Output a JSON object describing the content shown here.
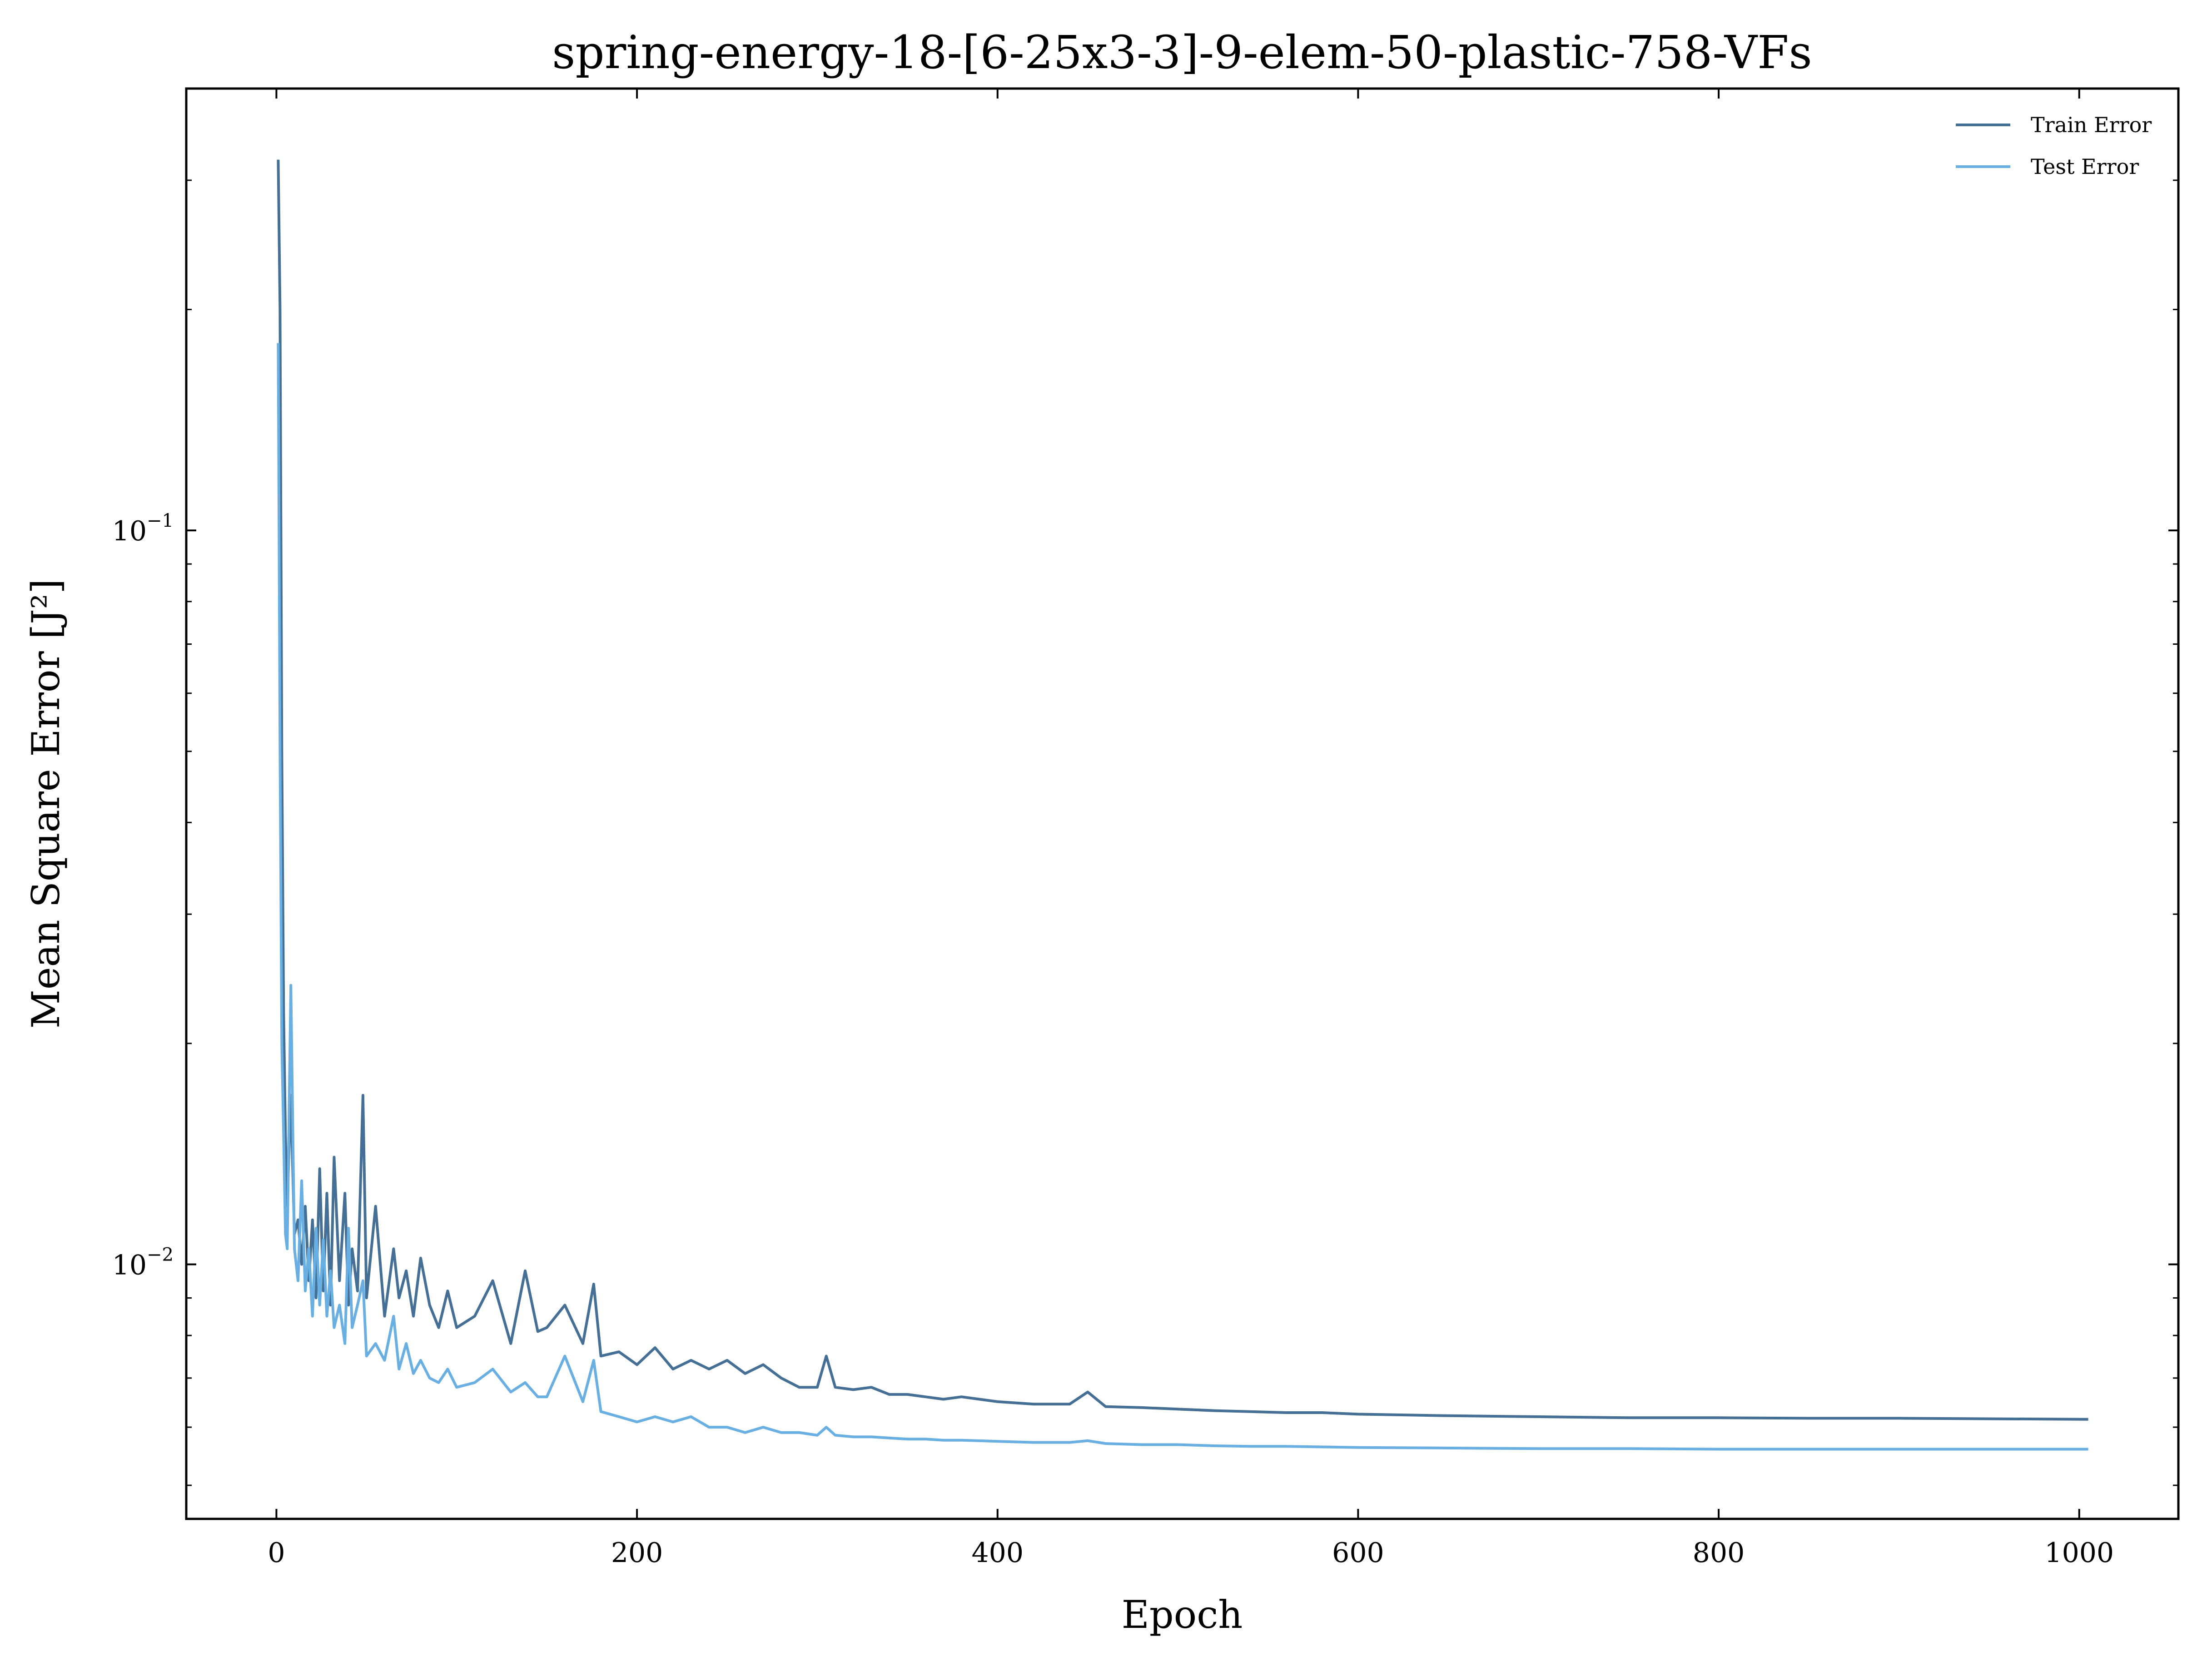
{
  "chart_data": {
    "type": "line",
    "title": "spring-energy-18-[6-25x3-3]-9-elem-50-plastic-758-VFs",
    "xlabel": "Epoch",
    "ylabel": "Mean Square Error [J²]",
    "yscale": "log",
    "xlim": [
      -50,
      1055
    ],
    "ylim": [
      0.0045,
      0.4
    ],
    "x_ticks": [
      {
        "value": 0,
        "label": "0"
      },
      {
        "value": 200,
        "label": "200"
      },
      {
        "value": 400,
        "label": "400"
      },
      {
        "value": 600,
        "label": "600"
      },
      {
        "value": 800,
        "label": "800"
      },
      {
        "value": 1000,
        "label": "1000"
      }
    ],
    "y_ticks": [
      {
        "value": 0.1,
        "base": "10",
        "exp": "−1"
      },
      {
        "value": 0.01,
        "base": "10",
        "exp": "−2"
      }
    ],
    "grid": false,
    "legend_position": "top-right",
    "series": [
      {
        "name": "Train Error",
        "color": "#456f95",
        "x": [
          1,
          2,
          3,
          4,
          5,
          6,
          8,
          10,
          12,
          14,
          16,
          18,
          20,
          22,
          24,
          26,
          28,
          30,
          32,
          35,
          38,
          40,
          42,
          45,
          48,
          50,
          55,
          60,
          65,
          68,
          72,
          76,
          80,
          85,
          90,
          95,
          100,
          110,
          120,
          130,
          138,
          145,
          150,
          160,
          170,
          176,
          180,
          190,
          200,
          210,
          220,
          230,
          240,
          250,
          260,
          270,
          280,
          290,
          300,
          305,
          310,
          320,
          330,
          340,
          350,
          360,
          370,
          380,
          400,
          420,
          440,
          450,
          460,
          480,
          500,
          520,
          540,
          560,
          580,
          600,
          650,
          700,
          750,
          800,
          850,
          900,
          950,
          1005
        ],
        "y": [
          0.32,
          0.2,
          0.05,
          0.022,
          0.015,
          0.012,
          0.017,
          0.011,
          0.0115,
          0.01,
          0.012,
          0.0095,
          0.0115,
          0.009,
          0.0135,
          0.0092,
          0.0125,
          0.0088,
          0.014,
          0.0095,
          0.0125,
          0.0088,
          0.0105,
          0.0092,
          0.017,
          0.009,
          0.012,
          0.0085,
          0.0105,
          0.009,
          0.0098,
          0.0085,
          0.0102,
          0.0088,
          0.0082,
          0.0092,
          0.0082,
          0.0085,
          0.0095,
          0.0078,
          0.0098,
          0.0081,
          0.0082,
          0.0088,
          0.0078,
          0.0094,
          0.0075,
          0.0076,
          0.0073,
          0.0077,
          0.0072,
          0.0074,
          0.0072,
          0.0074,
          0.0071,
          0.0073,
          0.007,
          0.0068,
          0.0068,
          0.0075,
          0.0068,
          0.00675,
          0.0068,
          0.00665,
          0.00665,
          0.0066,
          0.00655,
          0.0066,
          0.0065,
          0.00645,
          0.00645,
          0.0067,
          0.0064,
          0.00638,
          0.00635,
          0.00632,
          0.0063,
          0.00628,
          0.00628,
          0.00625,
          0.00622,
          0.0062,
          0.00618,
          0.00618,
          0.00617,
          0.00617,
          0.00616,
          0.00615
        ]
      },
      {
        "name": "Test Error",
        "color": "#6aafe1",
        "x": [
          1,
          2,
          3,
          4,
          5,
          6,
          8,
          10,
          12,
          14,
          16,
          18,
          20,
          22,
          24,
          26,
          28,
          30,
          32,
          35,
          38,
          40,
          42,
          45,
          48,
          50,
          55,
          60,
          65,
          68,
          72,
          76,
          80,
          85,
          90,
          95,
          100,
          110,
          120,
          130,
          138,
          145,
          150,
          160,
          170,
          176,
          180,
          190,
          200,
          210,
          220,
          230,
          240,
          250,
          260,
          270,
          280,
          290,
          300,
          305,
          310,
          320,
          330,
          340,
          350,
          360,
          370,
          380,
          400,
          420,
          440,
          450,
          460,
          480,
          500,
          520,
          540,
          560,
          580,
          600,
          650,
          700,
          750,
          800,
          850,
          900,
          950,
          1005
        ],
        "y": [
          0.18,
          0.05,
          0.02,
          0.015,
          0.011,
          0.0105,
          0.024,
          0.0105,
          0.0095,
          0.013,
          0.0092,
          0.0105,
          0.0085,
          0.0112,
          0.0088,
          0.0108,
          0.0085,
          0.0098,
          0.0082,
          0.0088,
          0.0078,
          0.0112,
          0.0082,
          0.0088,
          0.0095,
          0.0075,
          0.0078,
          0.0074,
          0.0085,
          0.0072,
          0.0078,
          0.0071,
          0.0074,
          0.007,
          0.0069,
          0.0072,
          0.0068,
          0.0069,
          0.0072,
          0.0067,
          0.0069,
          0.0066,
          0.0066,
          0.0075,
          0.0065,
          0.0074,
          0.0063,
          0.0062,
          0.0061,
          0.0062,
          0.0061,
          0.0062,
          0.006,
          0.006,
          0.0059,
          0.006,
          0.0059,
          0.0059,
          0.00585,
          0.006,
          0.00585,
          0.00582,
          0.00582,
          0.0058,
          0.00578,
          0.00578,
          0.00576,
          0.00576,
          0.00574,
          0.00572,
          0.00572,
          0.00575,
          0.0057,
          0.00568,
          0.00568,
          0.00566,
          0.00565,
          0.00565,
          0.00564,
          0.00563,
          0.00562,
          0.00561,
          0.00561,
          0.0056,
          0.0056,
          0.0056,
          0.0056,
          0.0056
        ]
      }
    ]
  }
}
